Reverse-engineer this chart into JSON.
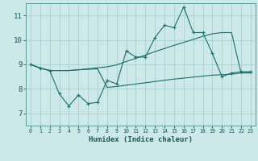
{
  "background_color": "#cce8e8",
  "grid_color": "#aacfcf",
  "line_color": "#1a6e6e",
  "spine_color": "#5a9a9a",
  "xlabel": "Humidex (Indice chaleur)",
  "ylim": [
    6.5,
    11.5
  ],
  "yticks": [
    7,
    8,
    9,
    10,
    11
  ],
  "xlim": [
    -0.5,
    23.5
  ],
  "x_labels": [
    "0",
    "1",
    "2",
    "3",
    "4",
    "5",
    "6",
    "7",
    "8",
    "9",
    "10",
    "11",
    "12",
    "13",
    "14",
    "15",
    "16",
    "17",
    "18",
    "19",
    "20",
    "21",
    "22",
    "23"
  ],
  "series_main": [
    9.0,
    8.85,
    8.75,
    7.8,
    7.3,
    7.75,
    7.4,
    7.45,
    8.35,
    8.2,
    9.55,
    9.3,
    9.3,
    10.1,
    10.6,
    10.5,
    11.35,
    10.3,
    10.3,
    9.45,
    8.5,
    8.65,
    8.7,
    8.7
  ],
  "series_upper": [
    9.0,
    8.85,
    8.75,
    8.75,
    8.75,
    8.78,
    8.82,
    8.86,
    8.9,
    8.98,
    9.12,
    9.25,
    9.38,
    9.52,
    9.65,
    9.78,
    9.9,
    10.02,
    10.15,
    10.25,
    10.3,
    10.3,
    8.65,
    8.65
  ],
  "series_lower": [
    9.0,
    8.85,
    8.75,
    8.75,
    8.75,
    8.78,
    8.8,
    8.82,
    8.06,
    8.1,
    8.15,
    8.2,
    8.25,
    8.3,
    8.35,
    8.4,
    8.44,
    8.48,
    8.52,
    8.56,
    8.58,
    8.6,
    8.65,
    8.68
  ]
}
